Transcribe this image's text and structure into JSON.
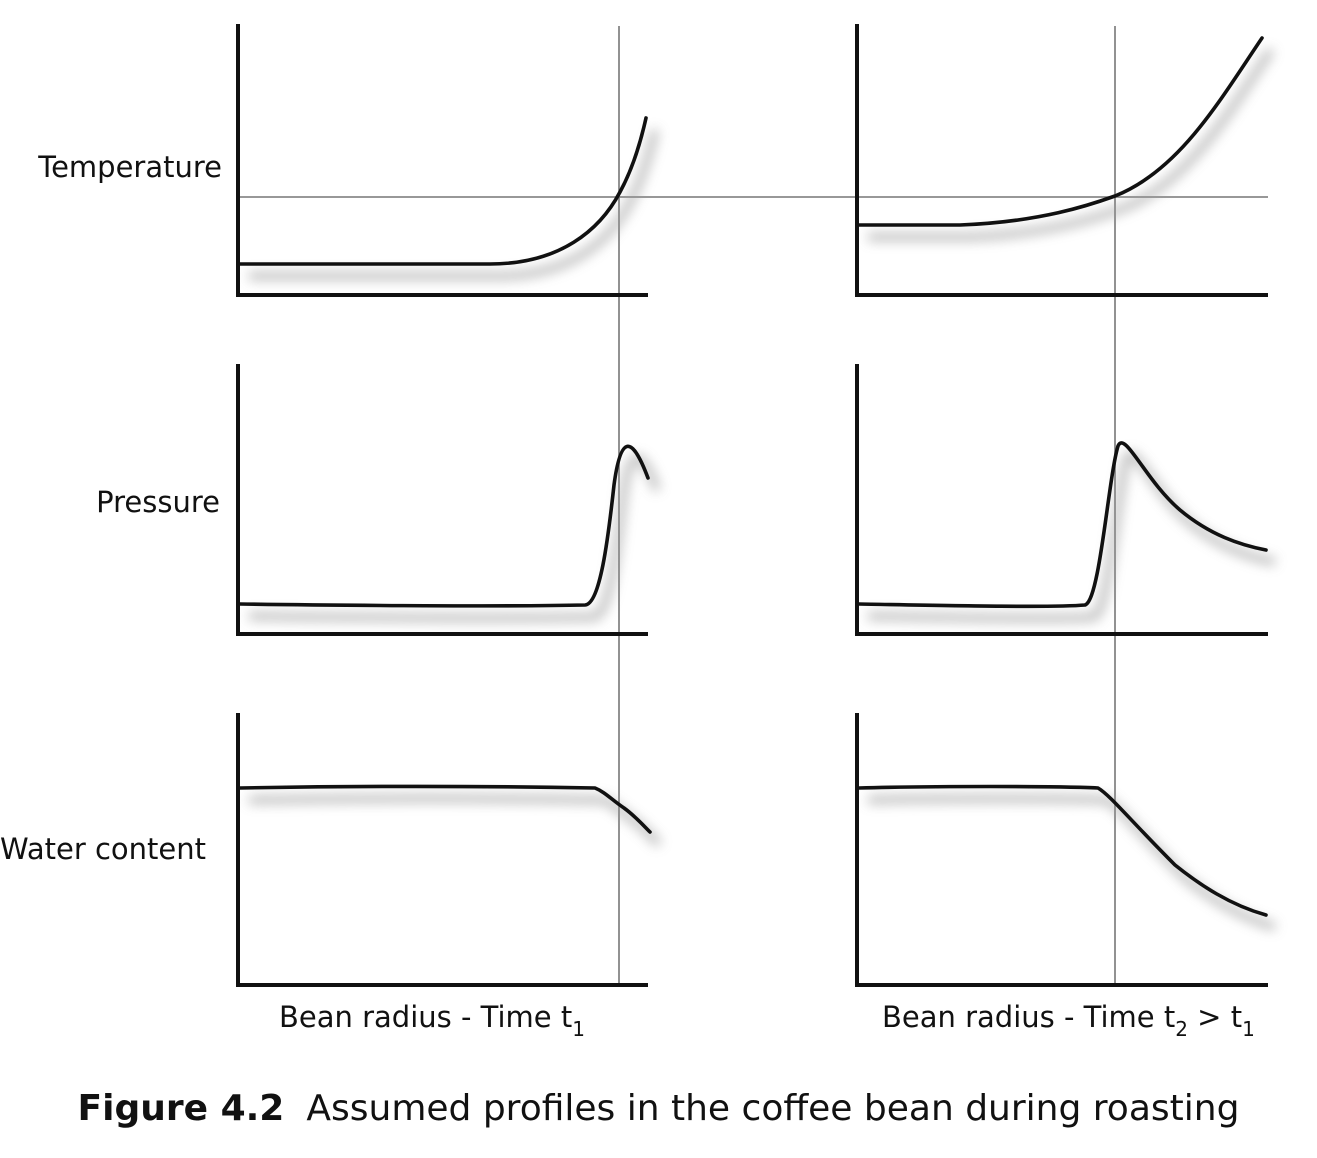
{
  "rows": [
    {
      "label": "Temperature"
    },
    {
      "label": "Pressure"
    },
    {
      "label": "Water content"
    }
  ],
  "columns": [
    {
      "xlabel": {
        "main": "Bean radius - Time t",
        "sub1": "1",
        "mid": "",
        "sub2": ""
      }
    },
    {
      "xlabel": {
        "main": "Bean radius - Time t",
        "sub1": "2",
        "mid": " > t",
        "sub2": "1"
      }
    }
  ],
  "caption": {
    "number": "Figure 4.2",
    "text": "Assumed profiles in the coffee bean during roasting"
  },
  "colors": {
    "curve": "#111111",
    "reference_line": "#777777",
    "shadow": "#999999"
  }
}
